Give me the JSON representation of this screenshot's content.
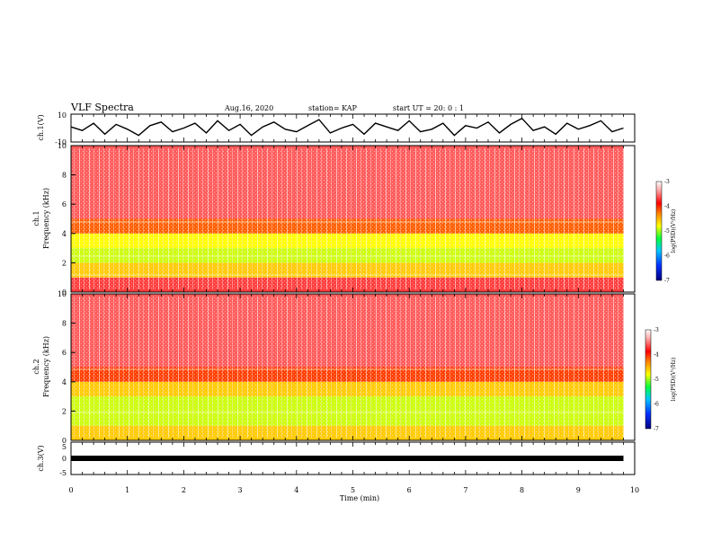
{
  "header": {
    "title": "VLF Spectra",
    "date": "Aug.16, 2020",
    "station": "station= KAP",
    "start": "start  UT =   20: 0  : 1"
  },
  "chart_data": [
    {
      "type": "line",
      "panel": "ch1-waveform",
      "ylabel": "ch.1(V)",
      "ylim": [
        -10,
        10
      ],
      "yticks": [
        "10",
        "-10"
      ],
      "x_range_min": [
        0,
        9.8
      ],
      "values": [
        1,
        -2,
        4,
        -5,
        3,
        -1,
        -6,
        2,
        5,
        -3,
        0,
        4,
        -4,
        6,
        -2,
        3,
        -6,
        1,
        5,
        -1,
        -3,
        2,
        7,
        -4,
        0,
        3,
        -5,
        4,
        1,
        -2,
        6,
        -3,
        -1,
        4,
        -6,
        2,
        0,
        5,
        -4,
        3,
        8,
        -2,
        1,
        -5,
        4,
        -1,
        2,
        6,
        -3,
        0
      ]
    },
    {
      "type": "heatmap",
      "panel": "ch1-spectrogram",
      "ylabel_line1": "ch.1",
      "ylabel_line2": "Frequency  (kHz)",
      "ylim": [
        0,
        10
      ],
      "yticks": [
        "10",
        "8",
        "6",
        "4",
        "2",
        "0"
      ],
      "band_edges_khz": [
        0,
        1,
        2,
        3,
        4,
        5,
        10
      ],
      "band_log_psd": [
        -3.7,
        -4.6,
        -4.9,
        -4.8,
        -4.2,
        -3.6
      ]
    },
    {
      "type": "heatmap",
      "panel": "ch2-spectrogram",
      "ylabel_line1": "ch.2",
      "ylabel_line2": "Frequency  (kHz)",
      "ylim": [
        0,
        10
      ],
      "yticks": [
        "10",
        "8",
        "6",
        "4",
        "2",
        "0"
      ],
      "band_edges_khz": [
        0,
        1,
        2,
        3,
        4,
        5,
        10
      ],
      "band_log_psd": [
        -4.6,
        -4.9,
        -4.9,
        -4.6,
        -4.1,
        -3.6
      ]
    },
    {
      "type": "line",
      "panel": "ch3-waveform",
      "ylabel": "ch.3(V)",
      "ylim": [
        -5,
        5
      ],
      "yticks": [
        "5",
        "0",
        "-5"
      ],
      "x_range_min": [
        0,
        9.8
      ],
      "level": 0
    }
  ],
  "xaxis": {
    "label": "Time  (min)",
    "ticks": [
      "0",
      "1",
      "2",
      "3",
      "4",
      "5",
      "6",
      "7",
      "8",
      "9",
      "10"
    ],
    "range": [
      0,
      10
    ]
  },
  "colorbar": {
    "label": "log(PSD)(V²/Hz)",
    "range": [
      -7,
      -3
    ],
    "ticks": [
      "-3",
      "-4",
      "-5",
      "-6",
      "-7"
    ],
    "colors": [
      "#0000a0",
      "#0040ff",
      "#00c0ff",
      "#00ff40",
      "#ffff00",
      "#ff8000",
      "#ff0000",
      "#ff9090",
      "#ffffff"
    ]
  }
}
